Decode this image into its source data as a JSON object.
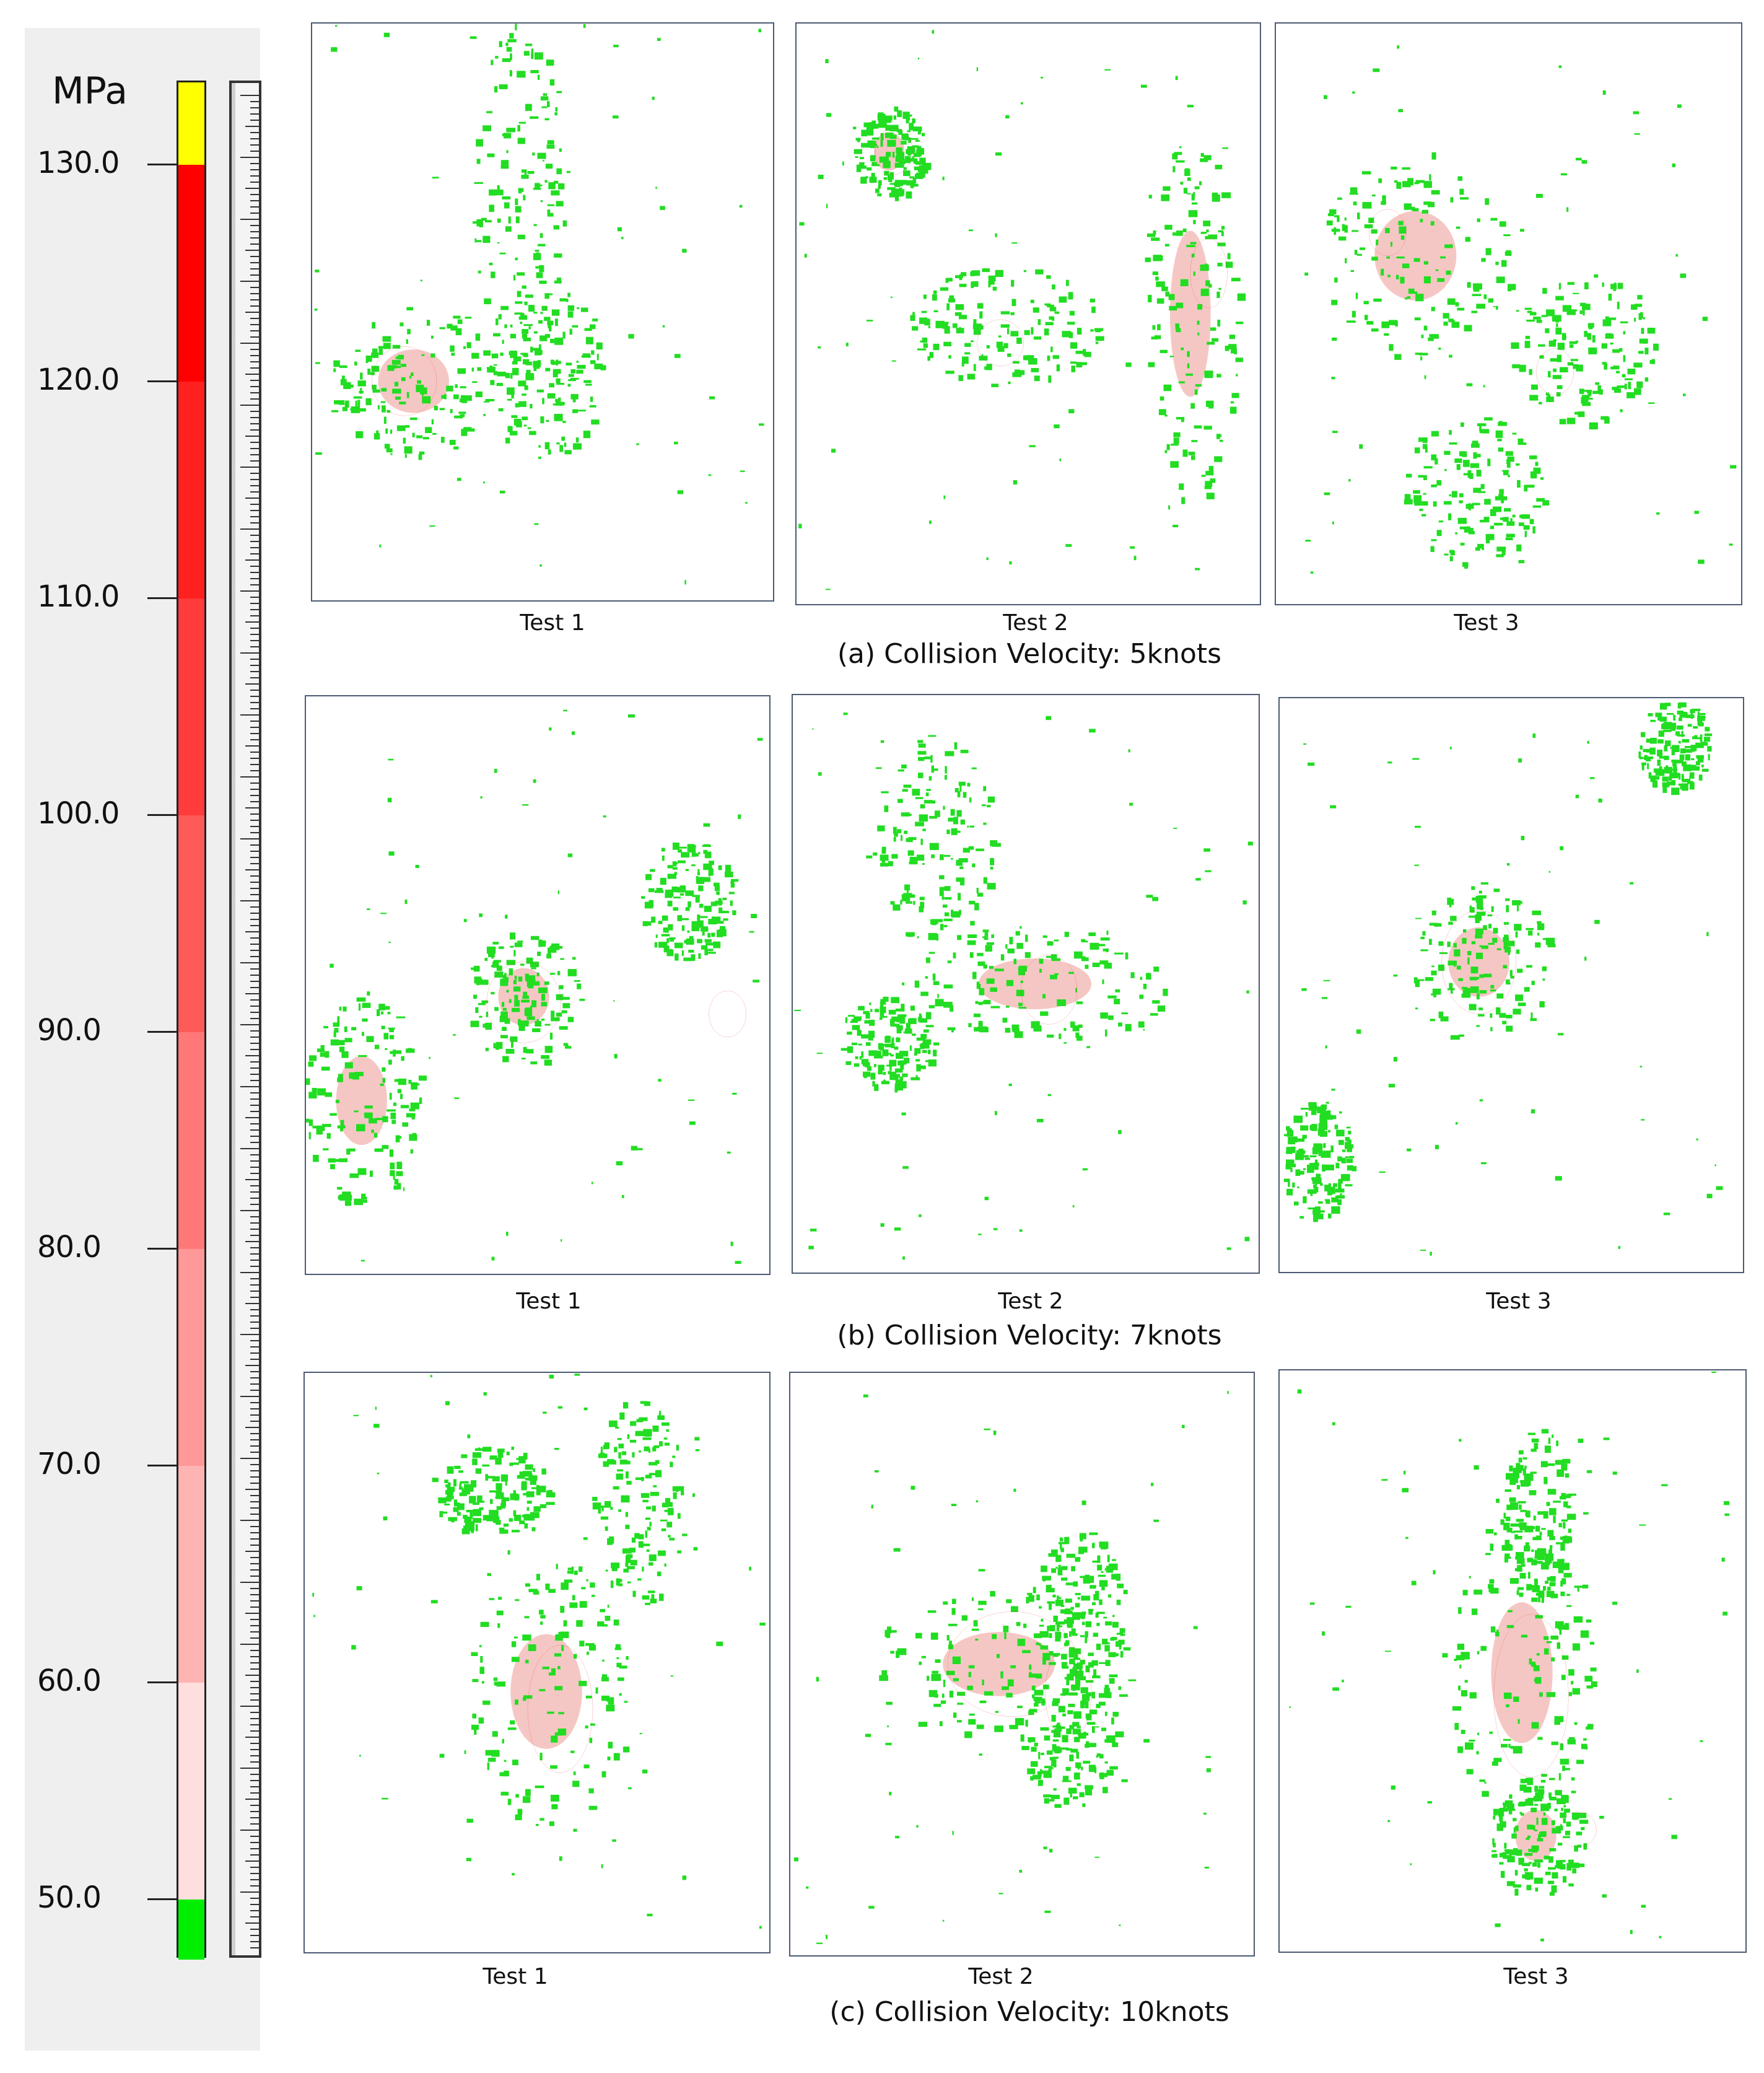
{
  "legend": {
    "unit": "MPa",
    "ticks": [
      "130.0",
      "120.0",
      "110.0",
      "100.0",
      "90.0",
      "80.0",
      "70.0",
      "60.0",
      "50.0"
    ],
    "colors": {
      "top": "#ffff00",
      "bands": [
        "#ff0000",
        "#ff2020",
        "#ff3b3b",
        "#ff5a5a",
        "#ff7878",
        "#ff9898",
        "#ffb4b4",
        "#ffdede"
      ],
      "bottom": "#00ee00"
    }
  },
  "rows": [
    {
      "caption": "(a) Collision Velocity: 5knots",
      "panels": [
        {
          "label": "Test 1"
        },
        {
          "label": "Test 2"
        },
        {
          "label": "Test 3"
        }
      ]
    },
    {
      "caption": "(b) Collision Velocity: 7knots",
      "panels": [
        {
          "label": "Test 1"
        },
        {
          "label": "Test 2"
        },
        {
          "label": "Test 3"
        }
      ]
    },
    {
      "caption": "(c) Collision Velocity: 10knots",
      "panels": [
        {
          "label": "Test 1"
        },
        {
          "label": "Test 2"
        },
        {
          "label": "Test 3"
        }
      ]
    }
  ],
  "colors": {
    "stress_green": "#22dd22",
    "stress_pink": "#f5c7c4",
    "marker_red": "#e02020"
  }
}
